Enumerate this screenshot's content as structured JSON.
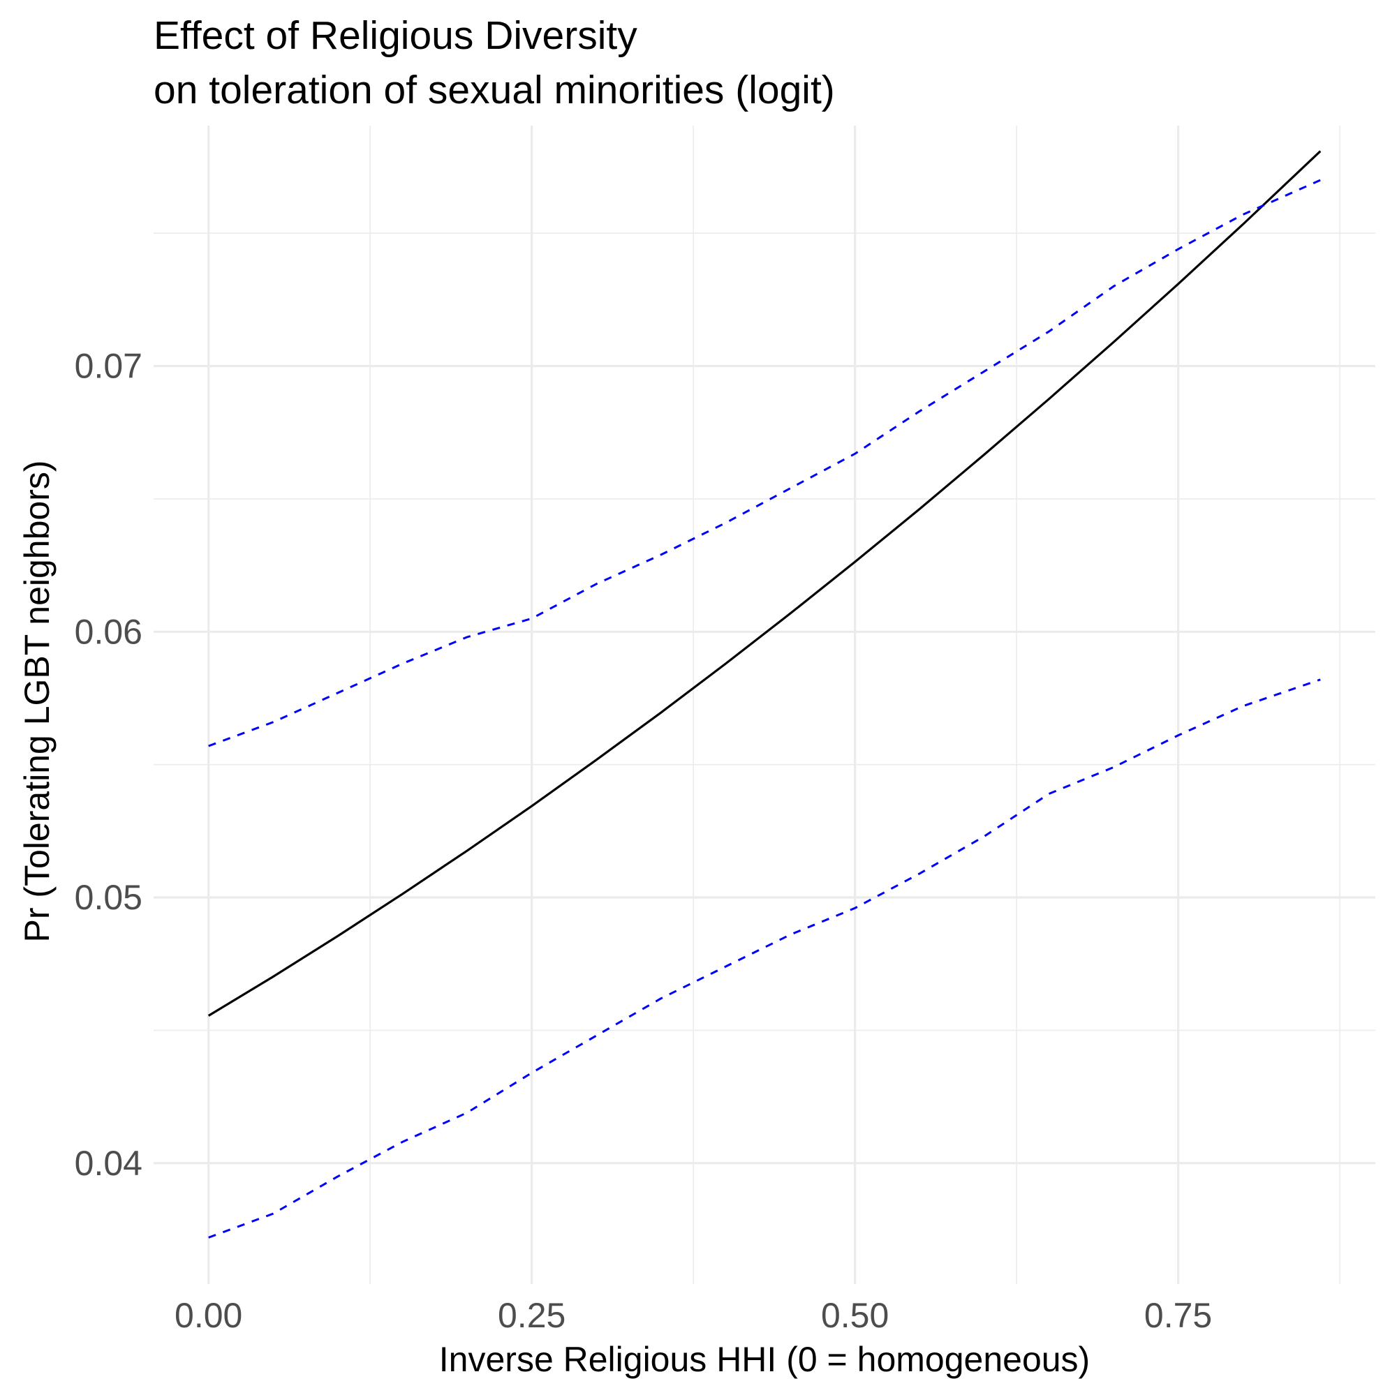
{
  "chart_data": {
    "type": "line",
    "title": "Effect of Religious Diversity",
    "subtitle": "on toleration of sexual minorities (logit)",
    "xlabel": "Inverse Religious HHI (0 = homogeneous)",
    "ylabel": "Pr (Tolerating LGBT neighbors)",
    "xlim": [
      -0.0425,
      0.9025
    ],
    "ylim": [
      0.03545,
      0.07905
    ],
    "x_ticks": [
      0.0,
      0.25,
      0.5,
      0.75
    ],
    "x_tick_labels": [
      "0.00",
      "0.25",
      "0.50",
      "0.75"
    ],
    "x_minor_ticks": [
      0.125,
      0.375,
      0.625,
      0.875
    ],
    "y_ticks": [
      0.04,
      0.05,
      0.06,
      0.07
    ],
    "y_tick_labels": [
      "0.04",
      "0.05",
      "0.06",
      "0.07"
    ],
    "y_minor_ticks": [
      0.045,
      0.055,
      0.065,
      0.075
    ],
    "grid": true,
    "legend": "none",
    "series": [
      {
        "role": "prediction",
        "color": "#000000",
        "style": "solid",
        "x": [
          0.0,
          0.05,
          0.1,
          0.15,
          0.2,
          0.25,
          0.3,
          0.35,
          0.4,
          0.45,
          0.5,
          0.55,
          0.6,
          0.65,
          0.7,
          0.75,
          0.8,
          0.86
        ],
        "y": [
          0.04555,
          0.04702,
          0.04855,
          0.05013,
          0.05176,
          0.05344,
          0.05518,
          0.05696,
          0.0588,
          0.06069,
          0.06263,
          0.06462,
          0.06667,
          0.06876,
          0.0709,
          0.07309,
          0.07533,
          0.07809
        ]
      },
      {
        "role": "upper bound",
        "color": "#0000ff",
        "style": "dashed",
        "x": [
          0.0,
          0.05,
          0.1,
          0.15,
          0.2,
          0.25,
          0.3,
          0.35,
          0.4,
          0.45,
          0.5,
          0.55,
          0.6,
          0.65,
          0.7,
          0.75,
          0.8,
          0.86
        ],
        "y": [
          0.0557,
          0.0566,
          0.0577,
          0.0588,
          0.0598,
          0.0605,
          0.0618,
          0.0629,
          0.0641,
          0.0654,
          0.0667,
          0.0683,
          0.0698,
          0.0713,
          0.073,
          0.0744,
          0.0757,
          0.077
        ]
      },
      {
        "role": "lower bound",
        "color": "#0000ff",
        "style": "dashed",
        "x": [
          0.0,
          0.05,
          0.1,
          0.15,
          0.2,
          0.25,
          0.3,
          0.35,
          0.4,
          0.45,
          0.5,
          0.55,
          0.6,
          0.65,
          0.7,
          0.75,
          0.8,
          0.86
        ],
        "y": [
          0.0372,
          0.0381,
          0.0395,
          0.0408,
          0.0419,
          0.0434,
          0.0448,
          0.0462,
          0.0474,
          0.0486,
          0.0496,
          0.0509,
          0.0523,
          0.0539,
          0.0549,
          0.0561,
          0.0572,
          0.0582
        ]
      }
    ]
  }
}
